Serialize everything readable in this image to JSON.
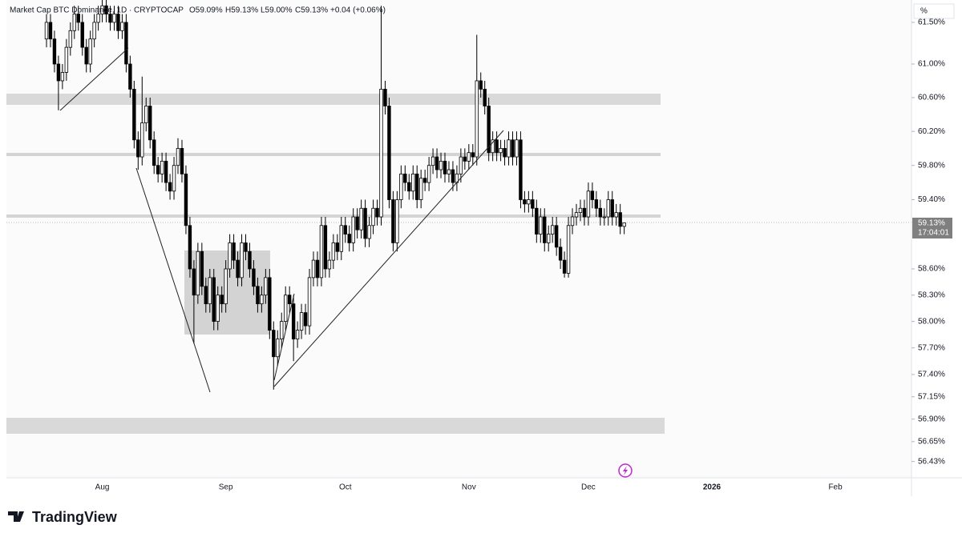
{
  "chart_data": {
    "type": "candlestick",
    "title": "Market Cap BTC Dominance, 1D · CRYPTOCAP",
    "ohlc_labels": [
      "O59.09%",
      "H59.13%",
      "L59.00%",
      "C59.13%",
      "+0.04 (+0.06%)"
    ],
    "unit_label": "%",
    "last_price_label": "59.13%",
    "countdown_label": "17:04:01",
    "brand": "TradingView",
    "log_scale": true,
    "up_color": "#ffffff",
    "down_color": "#000000",
    "wick_color": "#000000",
    "ylim": [
      56.25,
      61.77
    ],
    "yticks": [
      {
        "value": 61.5,
        "label": "61.50%"
      },
      {
        "value": 61.0,
        "label": "61.00%"
      },
      {
        "value": 60.6,
        "label": "60.60%"
      },
      {
        "value": 60.2,
        "label": "60.20%"
      },
      {
        "value": 59.8,
        "label": "59.80%"
      },
      {
        "value": 59.4,
        "label": "59.40%"
      },
      {
        "value": 58.6,
        "label": "58.60%"
      },
      {
        "value": 58.3,
        "label": "58.30%"
      },
      {
        "value": 58.0,
        "label": "58.00%"
      },
      {
        "value": 57.7,
        "label": "57.70%"
      },
      {
        "value": 57.4,
        "label": "57.40%"
      },
      {
        "value": 57.15,
        "label": "57.15%"
      },
      {
        "value": 56.9,
        "label": "56.90%"
      },
      {
        "value": 56.65,
        "label": "56.65%"
      },
      {
        "value": 56.43,
        "label": "56.43%"
      }
    ],
    "categories": [
      null,
      null,
      null,
      null,
      null,
      null,
      null,
      null,
      null,
      null,
      null,
      null,
      null,
      null,
      "Aug",
      null,
      null,
      null,
      null,
      null,
      null,
      null,
      null,
      null,
      null,
      null,
      null,
      null,
      null,
      null,
      null,
      null,
      null,
      null,
      null,
      null,
      null,
      null,
      null,
      null,
      null,
      null,
      null,
      null,
      null,
      "Sep",
      null,
      null,
      null,
      null,
      null,
      null,
      null,
      null,
      null,
      null,
      null,
      null,
      null,
      null,
      null,
      null,
      null,
      null,
      null,
      null,
      null,
      null,
      null,
      null,
      null,
      null,
      null,
      null,
      null,
      "Oct",
      null,
      null,
      null,
      null,
      null,
      null,
      null,
      null,
      null,
      null,
      null,
      null,
      null,
      null,
      null,
      null,
      null,
      null,
      null,
      null,
      null,
      null,
      null,
      null,
      null,
      null,
      null,
      null,
      null,
      null,
      "Nov",
      null,
      null,
      null,
      null,
      null,
      null,
      null,
      null,
      null,
      null,
      null,
      null,
      null,
      null,
      null,
      null,
      null,
      null,
      null,
      null,
      null,
      null,
      null,
      null,
      null,
      null,
      null,
      null,
      null,
      "Dec",
      null,
      null,
      null,
      null,
      null,
      null,
      null,
      null,
      null,
      null,
      null,
      null,
      null,
      null,
      null,
      null,
      null,
      null,
      null,
      null,
      null,
      null,
      null,
      null,
      null,
      null,
      null,
      null,
      null,
      null,
      "2026",
      null,
      null,
      null,
      null,
      null,
      null,
      null,
      null,
      null,
      null,
      null,
      null,
      null,
      null,
      null,
      null,
      null,
      null,
      null,
      null,
      null,
      null,
      null,
      null,
      null,
      null,
      null,
      null,
      null,
      null,
      "Feb",
      null,
      null,
      null,
      null,
      null,
      null,
      null,
      null,
      null,
      null,
      null,
      null,
      null,
      null,
      null,
      null,
      null,
      null,
      null
    ],
    "open": [
      61.3,
      61.5,
      61.3,
      61.0,
      60.8,
      60.9,
      61.2,
      61.4,
      61.6,
      61.5,
      61.2,
      61.0,
      61.3,
      61.5,
      61.6,
      61.7,
      61.6,
      61.5,
      61.6,
      61.4,
      61.5,
      61.0,
      60.7,
      60.1,
      59.9,
      60.3,
      60.5,
      60.1,
      59.8,
      59.7,
      59.85,
      59.6,
      59.5,
      59.8,
      60.0,
      59.7,
      59.1,
      58.6,
      58.3,
      58.8,
      58.4,
      58.2,
      58.5,
      58.0,
      58.3,
      58.2,
      58.6,
      58.9,
      58.7,
      58.5,
      58.9,
      58.8,
      58.6,
      58.4,
      58.2,
      58.3,
      58.5,
      57.9,
      57.6,
      57.8,
      58.0,
      58.3,
      58.2,
      57.8,
      57.9,
      58.1,
      57.95,
      58.5,
      58.7,
      58.5,
      59.1,
      58.6,
      58.7,
      58.9,
      58.8,
      59.1,
      59.0,
      58.9,
      59.2,
      59.05,
      59.3,
      58.95,
      59.1,
      59.3,
      59.2,
      60.7,
      60.5,
      59.4,
      58.9,
      59.4,
      59.7,
      59.6,
      59.5,
      59.7,
      59.4,
      59.65,
      59.6,
      59.8,
      59.9,
      59.75,
      59.85,
      59.7,
      59.75,
      59.6,
      59.7,
      59.9,
      59.85,
      59.95,
      59.9,
      60.8,
      60.7,
      60.5,
      59.95,
      60.1,
      59.95,
      60.0,
      59.9,
      60.1,
      59.9,
      60.1,
      59.4,
      59.35,
      59.4,
      59.3,
      59.0,
      59.2,
      58.9,
      59.0,
      59.1,
      58.85,
      58.7,
      58.55,
      59.1,
      59.2,
      59.25,
      59.3,
      59.2,
      59.5,
      59.4,
      59.3,
      59.2,
      59.2,
      59.4,
      59.2,
      59.25,
      59.09,
      null,
      null,
      null,
      null,
      null,
      null,
      null,
      null,
      null,
      null,
      null,
      null,
      null,
      null,
      null,
      null,
      null,
      null,
      null,
      null,
      null,
      null,
      null,
      null,
      null,
      null,
      null,
      null,
      null,
      null,
      null,
      null,
      null,
      null,
      null,
      null,
      null,
      null,
      null,
      null,
      null,
      null,
      null,
      null,
      null,
      null,
      null,
      null,
      null,
      null,
      null,
      null,
      null,
      null,
      null,
      null,
      null,
      null,
      null,
      null,
      null,
      null,
      null,
      null,
      null,
      null,
      null,
      null,
      null,
      null,
      null,
      null
    ],
    "high": [
      61.6,
      61.6,
      61.4,
      61.1,
      61.0,
      61.3,
      61.5,
      61.7,
      61.7,
      61.6,
      61.3,
      61.4,
      61.6,
      61.7,
      61.8,
      61.8,
      61.7,
      61.7,
      61.7,
      61.6,
      61.6,
      61.1,
      60.8,
      60.2,
      60.85,
      60.6,
      60.6,
      60.2,
      59.9,
      59.95,
      59.95,
      59.7,
      59.9,
      60.12,
      60.1,
      59.8,
      59.2,
      58.7,
      58.9,
      58.9,
      58.5,
      58.6,
      58.6,
      58.4,
      58.4,
      58.7,
      59.0,
      59.0,
      58.8,
      59.0,
      59.0,
      58.9,
      58.7,
      58.5,
      58.4,
      58.6,
      58.6,
      58.0,
      57.9,
      58.1,
      58.4,
      58.4,
      58.3,
      58.0,
      58.2,
      58.2,
      58.6,
      58.8,
      58.8,
      59.2,
      59.2,
      58.8,
      59.0,
      59.0,
      59.2,
      59.2,
      59.1,
      59.3,
      59.3,
      59.4,
      59.4,
      59.2,
      59.4,
      59.4,
      61.7,
      60.8,
      60.6,
      59.5,
      59.5,
      59.8,
      59.8,
      59.7,
      59.8,
      59.8,
      59.75,
      59.75,
      59.9,
      60.0,
      60.0,
      59.95,
      59.95,
      59.85,
      59.85,
      59.8,
      60.0,
      60.0,
      60.05,
      60.05,
      61.35,
      60.9,
      60.8,
      60.6,
      60.2,
      60.2,
      60.1,
      60.1,
      60.2,
      60.2,
      60.2,
      60.2,
      59.5,
      59.5,
      59.5,
      59.4,
      59.3,
      59.3,
      59.1,
      59.2,
      59.2,
      58.95,
      58.8,
      59.2,
      59.3,
      59.35,
      59.4,
      59.4,
      59.6,
      59.6,
      59.5,
      59.4,
      59.3,
      59.5,
      59.5,
      59.35,
      59.35,
      59.13,
      null,
      null,
      null,
      null,
      null,
      null,
      null,
      null,
      null,
      null,
      null,
      null,
      null,
      null,
      null,
      null,
      null,
      null,
      null,
      null,
      null,
      null,
      null,
      null,
      null,
      null,
      null,
      null,
      null,
      null,
      null,
      null,
      null,
      null,
      null,
      null,
      null,
      null,
      null,
      null,
      null,
      null,
      null,
      null,
      null,
      null,
      null,
      null,
      null,
      null,
      null,
      null,
      null,
      null,
      null,
      null,
      null,
      null,
      null,
      null,
      null,
      null,
      null,
      null,
      null,
      null,
      null,
      null,
      null,
      null,
      null,
      null
    ],
    "low": [
      61.2,
      61.2,
      60.9,
      60.45,
      60.7,
      60.8,
      61.1,
      61.3,
      61.4,
      61.1,
      60.9,
      60.9,
      61.2,
      61.4,
      61.5,
      61.5,
      61.4,
      61.4,
      61.3,
      61.3,
      60.9,
      60.6,
      60.0,
      59.75,
      59.8,
      60.2,
      60.0,
      59.7,
      59.6,
      59.6,
      59.5,
      59.4,
      59.4,
      59.7,
      59.6,
      59.0,
      58.5,
      57.75,
      58.2,
      58.3,
      58.1,
      58.1,
      57.9,
      57.9,
      58.1,
      58.1,
      58.5,
      58.6,
      58.4,
      58.4,
      58.7,
      58.5,
      58.3,
      58.1,
      58.1,
      58.2,
      57.8,
      57.23,
      57.5,
      57.7,
      57.9,
      58.1,
      57.55,
      57.7,
      57.8,
      57.85,
      57.85,
      58.4,
      58.4,
      58.4,
      58.5,
      58.5,
      58.6,
      58.7,
      58.7,
      58.9,
      58.8,
      58.8,
      58.95,
      58.95,
      58.85,
      58.85,
      59.0,
      59.1,
      59.1,
      60.4,
      59.3,
      58.8,
      58.8,
      59.3,
      59.5,
      59.4,
      59.4,
      59.3,
      59.3,
      59.5,
      59.5,
      59.7,
      59.65,
      59.65,
      59.6,
      59.6,
      59.5,
      59.5,
      59.6,
      59.75,
      59.75,
      59.8,
      59.8,
      60.6,
      60.4,
      59.85,
      59.85,
      59.85,
      59.85,
      59.8,
      59.8,
      59.8,
      59.8,
      59.3,
      59.25,
      59.25,
      59.2,
      58.9,
      58.9,
      58.8,
      58.8,
      58.9,
      58.75,
      58.6,
      58.5,
      58.5,
      59.0,
      59.1,
      59.15,
      59.1,
      59.1,
      59.3,
      59.2,
      59.1,
      59.1,
      59.1,
      59.1,
      59.1,
      59.0,
      59.0,
      null,
      null,
      null,
      null,
      null,
      null,
      null,
      null,
      null,
      null,
      null,
      null,
      null,
      null,
      null,
      null,
      null,
      null,
      null,
      null,
      null,
      null,
      null,
      null,
      null,
      null,
      null,
      null,
      null,
      null,
      null,
      null,
      null,
      null,
      null,
      null,
      null,
      null,
      null,
      null,
      null,
      null,
      null,
      null,
      null,
      null,
      null,
      null,
      null,
      null,
      null,
      null,
      null,
      null,
      null,
      null,
      null,
      null,
      null,
      null,
      null,
      null,
      null,
      null,
      null,
      null,
      null,
      null,
      null,
      null,
      null,
      null
    ],
    "close": [
      61.5,
      61.3,
      61.0,
      60.8,
      60.9,
      61.2,
      61.4,
      61.6,
      61.5,
      61.2,
      61.0,
      61.3,
      61.5,
      61.6,
      61.7,
      61.6,
      61.5,
      61.6,
      61.4,
      61.5,
      61.0,
      60.7,
      60.1,
      59.9,
      60.3,
      60.5,
      60.1,
      59.8,
      59.7,
      59.85,
      59.6,
      59.5,
      59.8,
      60.0,
      59.7,
      59.1,
      58.6,
      58.3,
      58.8,
      58.4,
      58.2,
      58.5,
      58.0,
      58.3,
      58.2,
      58.6,
      58.9,
      58.7,
      58.5,
      58.9,
      58.8,
      58.6,
      58.4,
      58.2,
      58.3,
      58.5,
      57.9,
      57.6,
      57.8,
      58.0,
      58.3,
      58.2,
      57.8,
      57.9,
      58.1,
      57.95,
      58.5,
      58.7,
      58.5,
      59.1,
      58.6,
      58.7,
      58.9,
      58.8,
      59.1,
      59.0,
      58.9,
      59.2,
      59.05,
      59.3,
      58.95,
      59.1,
      59.3,
      59.2,
      60.7,
      60.5,
      59.4,
      58.9,
      59.4,
      59.7,
      59.6,
      59.5,
      59.7,
      59.4,
      59.65,
      59.6,
      59.8,
      59.9,
      59.75,
      59.85,
      59.7,
      59.75,
      59.6,
      59.7,
      59.9,
      59.85,
      59.95,
      59.9,
      60.8,
      60.7,
      60.5,
      59.95,
      60.1,
      59.95,
      60.0,
      59.9,
      60.1,
      59.9,
      60.1,
      59.4,
      59.35,
      59.4,
      59.3,
      59.0,
      59.2,
      58.9,
      59.0,
      59.1,
      58.85,
      58.7,
      58.55,
      59.1,
      59.2,
      59.25,
      59.3,
      59.2,
      59.5,
      59.4,
      59.3,
      59.2,
      59.2,
      59.4,
      59.2,
      59.25,
      59.09,
      59.13,
      null,
      null,
      null,
      null,
      null,
      null,
      null,
      null,
      null,
      null,
      null,
      null,
      null,
      null,
      null,
      null,
      null,
      null,
      null,
      null,
      null,
      null,
      null,
      null,
      null,
      null,
      null,
      null,
      null,
      null,
      null,
      null,
      null,
      null,
      null,
      null,
      null,
      null,
      null,
      null,
      null,
      null,
      null,
      null,
      null,
      null,
      null,
      null,
      null,
      null,
      null,
      null,
      null,
      null,
      null,
      null,
      null,
      null,
      null,
      null,
      null,
      null,
      null,
      null,
      null,
      null,
      null,
      null,
      null,
      null,
      null,
      null
    ]
  }
}
